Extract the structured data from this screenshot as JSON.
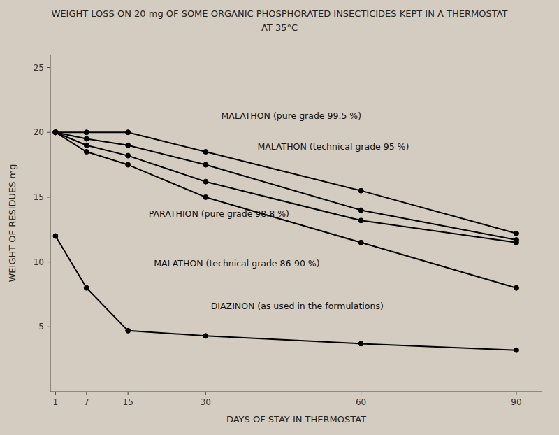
{
  "chart_data": {
    "type": "line",
    "title": "WEIGHT LOSS ON 20 mg OF SOME ORGANIC PHOSPHORATED INSECTICIDES KEPT IN A THERMOSTAT",
    "subtitle": "AT  35°C",
    "x_label": "DAYS OF STAY IN THERMOSTAT",
    "y_label": "WEIGHT OF RESIDUES  mg",
    "x": [
      1,
      7,
      15,
      30,
      60,
      90
    ],
    "xlim": [
      0,
      95
    ],
    "xticks": [
      1,
      7,
      15,
      30,
      60,
      90
    ],
    "ylim": [
      0,
      26
    ],
    "yticks": [
      5,
      10,
      15,
      20,
      25
    ],
    "grid": false,
    "marker": "circle",
    "line_style": "solid",
    "series": [
      {
        "color": "#000000",
        "values": [
          20,
          20,
          20,
          18.5,
          15.5,
          12.2
        ]
      },
      {
        "color": "#000000",
        "values": [
          20,
          19.5,
          19,
          17.5,
          14.0,
          11.7
        ]
      },
      {
        "color": "#000000",
        "values": [
          20,
          19.0,
          18.2,
          16.2,
          13.2,
          11.5
        ]
      },
      {
        "color": "#000000",
        "values": [
          20,
          18.5,
          17.5,
          15.0,
          11.5,
          8.0
        ]
      },
      {
        "color": "#000000",
        "values": [
          12,
          8.0,
          4.7,
          4.3,
          3.7,
          3.2
        ]
      }
    ],
    "annotations": [
      {
        "text": "MALATHON (pure grade 99.5 %)",
        "x": 33,
        "y": 20.9
      },
      {
        "text": "MALATHON (technical grade 95 %)",
        "x": 40,
        "y": 18.5
      },
      {
        "text": "PARATHION (pure grade 98.8 %)",
        "x": 19,
        "y": 13.3
      },
      {
        "text": "MALATHON (technical grade 86-90 %)",
        "x": 20,
        "y": 9.5
      },
      {
        "text": "DIAZINON (as used in the  formulations)",
        "x": 31,
        "y": 6.2
      }
    ]
  }
}
